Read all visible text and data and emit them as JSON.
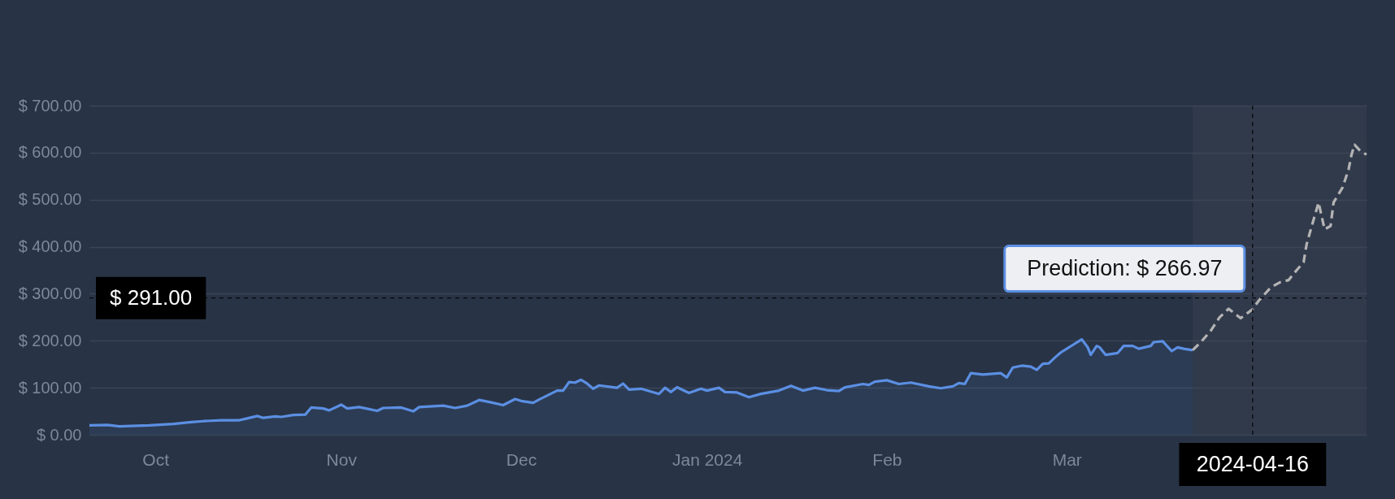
{
  "chart_data": {
    "type": "area",
    "xlim": [
      "2023-10-05",
      "2024-05-05"
    ],
    "ylim": [
      0,
      700
    ],
    "xticks": [
      {
        "value": "2023-10-16",
        "label": "Oct"
      },
      {
        "value": "2023-11-16",
        "label": "Nov"
      },
      {
        "value": "2023-12-16",
        "label": "Dec"
      },
      {
        "value": "2024-01-16",
        "label": "Jan 2024"
      },
      {
        "value": "2024-02-15",
        "label": "Feb"
      },
      {
        "value": "2024-03-16",
        "label": "Mar"
      }
    ],
    "yticks": [
      {
        "value": 0,
        "label": "$ 0.00"
      },
      {
        "value": 100,
        "label": "$ 100.00"
      },
      {
        "value": 200,
        "label": "$ 200.00"
      },
      {
        "value": 300,
        "label": "$ 300.00"
      },
      {
        "value": 400,
        "label": "$ 400.00"
      },
      {
        "value": 500,
        "label": "$ 500.00"
      },
      {
        "value": 600,
        "label": "$ 600.00"
      },
      {
        "value": 700,
        "label": "$ 700.00"
      }
    ],
    "grid": "y",
    "series": [
      {
        "color": "#5b8fe3",
        "line_style": "solid",
        "x": [
          "2023-10-05",
          "2023-10-08",
          "2023-10-10",
          "2023-10-15",
          "2023-10-19",
          "2023-10-22",
          "2023-10-24",
          "2023-10-27",
          "2023-10-30",
          "2023-10-31",
          "2023-11-02",
          "2023-11-03",
          "2023-11-05",
          "2023-11-06",
          "2023-11-08",
          "2023-11-10",
          "2023-11-11",
          "2023-11-13",
          "2023-11-14",
          "2023-11-16",
          "2023-11-17",
          "2023-11-19",
          "2023-11-22",
          "2023-11-23",
          "2023-11-26",
          "2023-11-28",
          "2023-11-29",
          "2023-12-03",
          "2023-12-05",
          "2023-12-07",
          "2023-12-09",
          "2023-12-11",
          "2023-12-13",
          "2023-12-15",
          "2023-12-16",
          "2023-12-18",
          "2023-12-19",
          "2023-12-22",
          "2023-12-23",
          "2023-12-24",
          "2023-12-25",
          "2023-12-26",
          "2023-12-27",
          "2023-12-28",
          "2023-12-29",
          "2024-01-01",
          "2024-01-02",
          "2024-01-03",
          "2024-01-05",
          "2024-01-08",
          "2024-01-09",
          "2024-01-10",
          "2024-01-11",
          "2024-01-13",
          "2024-01-15",
          "2024-01-16",
          "2024-01-18",
          "2024-01-19",
          "2024-01-21",
          "2024-01-23",
          "2024-01-25",
          "2024-01-28",
          "2024-01-30",
          "2024-02-01",
          "2024-02-03",
          "2024-02-05",
          "2024-02-07",
          "2024-02-08",
          "2024-02-11",
          "2024-02-12",
          "2024-02-13",
          "2024-02-15",
          "2024-02-17",
          "2024-02-19",
          "2024-02-22",
          "2024-02-24",
          "2024-02-26",
          "2024-02-27",
          "2024-02-28",
          "2024-02-29",
          "2024-03-02",
          "2024-03-05",
          "2024-03-06",
          "2024-03-07",
          "2024-03-08T12:00",
          "2024-03-10",
          "2024-03-11",
          "2024-03-12",
          "2024-03-13",
          "2024-03-14",
          "2024-03-15",
          "2024-03-16",
          "2024-03-17",
          "2024-03-18",
          "2024-03-18T12:00",
          "2024-03-19T12:00",
          "2024-03-20",
          "2024-03-21",
          "2024-03-21T12:00",
          "2024-03-22T12:00",
          "2024-03-24T12:00",
          "2024-03-25T12:00",
          "2024-03-27",
          "2024-03-28",
          "2024-03-30",
          "2024-03-30T12:00",
          "2024-04-01",
          "2024-04-02T12:00",
          "2024-04-03T12:00",
          "2024-04-04T12:00",
          "2024-04-06"
        ],
        "values": [
          20,
          21,
          18,
          20,
          23,
          27,
          29,
          31,
          31,
          34,
          40,
          36,
          39,
          38,
          42,
          43,
          58,
          56,
          52,
          64,
          56,
          59,
          51,
          57,
          58,
          50,
          59,
          62,
          57,
          62,
          74,
          69,
          63,
          76,
          72,
          68,
          75,
          94,
          94,
          112,
          111,
          117,
          109,
          98,
          105,
          100,
          109,
          96,
          98,
          87,
          100,
          91,
          101,
          89,
          98,
          94,
          100,
          91,
          90,
          80,
          87,
          94,
          104,
          94,
          100,
          95,
          93,
          101,
          108,
          106,
          113,
          116,
          108,
          111,
          103,
          99,
          103,
          110,
          108,
          131,
          128,
          131,
          122,
          143,
          147,
          145,
          138,
          151,
          152,
          164,
          175,
          183,
          191,
          199,
          203,
          186,
          170,
          189,
          186,
          170,
          174,
          189,
          189,
          183,
          189,
          197,
          199,
          178,
          186,
          183,
          180
        ]
      },
      {
        "type": "line",
        "color": "#b4b4b4",
        "line_style": "dashed",
        "x": [
          "2024-04-06",
          "2024-04-07T12:00",
          "2024-04-09",
          "2024-04-10T12:00",
          "2024-04-12",
          "2024-04-14",
          "2024-04-16",
          "2024-04-17",
          "2024-04-19",
          "2024-04-20T12:00",
          "2024-04-22",
          "2024-04-23",
          "2024-04-24T12:00",
          "2024-04-25",
          "2024-04-26",
          "2024-04-27",
          "2024-04-28",
          "2024-04-29",
          "2024-04-29T12:00",
          "2024-05-01",
          "2024-05-02",
          "2024-05-02T12:00",
          "2024-05-03",
          "2024-05-04",
          "2024-05-05"
        ],
        "values": [
          180,
          199,
          221,
          250,
          268,
          248,
          266.97,
          285,
          313,
          324,
          329,
          345,
          367,
          405,
          450,
          494,
          437,
          444,
          494,
          526,
          564,
          596,
          617,
          603,
          596
        ]
      }
    ],
    "bands": [
      {
        "axis": "x",
        "from": "2024-04-06",
        "to": "2024-05-05",
        "color": "#3e4555"
      }
    ],
    "ref_lines": [
      {
        "axis": "y",
        "value": 291,
        "label": "$ 291.00",
        "color": "#000000",
        "line_style": "dashed"
      },
      {
        "axis": "x",
        "value": "2024-04-16",
        "label": "2024-04-16",
        "color": "#000000",
        "line_style": "dashed"
      }
    ],
    "annotations": [
      {
        "text": "Prediction: $ 266.97",
        "x": "2024-04-16",
        "y": 266.97
      }
    ]
  }
}
